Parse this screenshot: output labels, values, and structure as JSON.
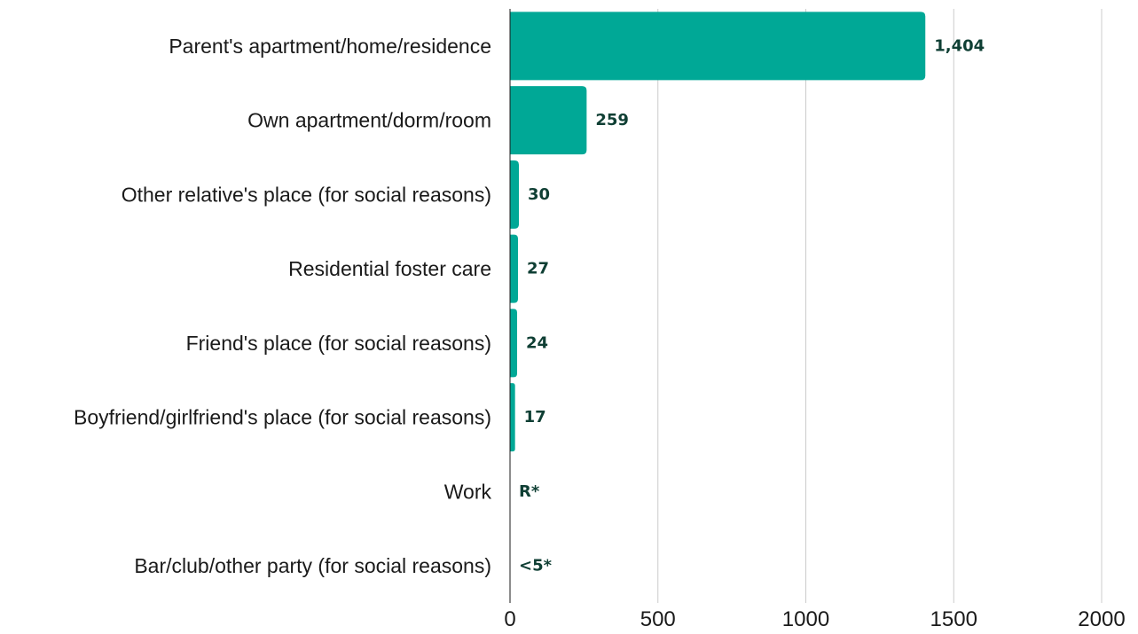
{
  "chart_data": {
    "type": "bar",
    "orientation": "horizontal",
    "categories": [
      "Parent's apartment/home/residence",
      "Own apartment/dorm/room",
      "Other relative's place (for social reasons)",
      "Residential foster care",
      "Friend's place (for social reasons)",
      "Boyfriend/girlfriend's place (for social reasons)",
      "Work",
      "Bar/club/other party (for social reasons)"
    ],
    "values": [
      1404,
      259,
      30,
      27,
      24,
      17,
      0,
      0
    ],
    "value_labels": [
      "1,404",
      "259",
      "30",
      "27",
      "24",
      "17",
      "R*",
      "<5*"
    ],
    "xlim": [
      0,
      2000
    ],
    "x_ticks": [
      0,
      500,
      1000,
      1500,
      2000
    ],
    "x_tick_labels": [
      "0",
      "500",
      "1000",
      "1500",
      "2000"
    ],
    "grid": "vertical",
    "legend": "none",
    "bar_color": "#00a896",
    "title": "",
    "xlabel": "",
    "ylabel": ""
  }
}
